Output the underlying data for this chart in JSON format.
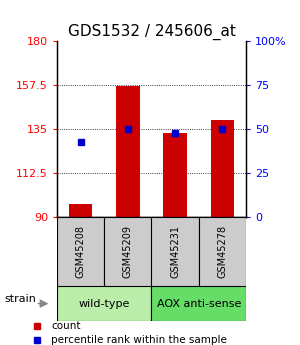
{
  "title": "GDS1532 / 245606_at",
  "samples": [
    "GSM45208",
    "GSM45209",
    "GSM45231",
    "GSM45278"
  ],
  "bar_values": [
    97,
    157,
    133,
    140
  ],
  "percentile_values": [
    43,
    50,
    48,
    50
  ],
  "ymin": 90,
  "ymax": 180,
  "yticks": [
    90,
    112.5,
    135,
    157.5,
    180
  ],
  "ytick_labels": [
    "90",
    "112.5",
    "135",
    "157.5",
    "180"
  ],
  "yright_ticks": [
    0,
    25,
    50,
    75,
    100
  ],
  "yright_labels": [
    "0",
    "25",
    "50",
    "75",
    "100%"
  ],
  "bar_color": "#cc0000",
  "percentile_color": "#0000cc",
  "groups": [
    {
      "label": "wild-type",
      "indices": [
        0,
        1
      ],
      "color": "#bbeeaa"
    },
    {
      "label": "AOX anti-sense",
      "indices": [
        2,
        3
      ],
      "color": "#66dd66"
    }
  ],
  "strain_label": "strain",
  "legend_count_label": "count",
  "legend_percentile_label": "percentile rank within the sample",
  "title_fontsize": 11,
  "tick_fontsize": 8,
  "sample_fontsize": 7,
  "group_fontsize": 8,
  "legend_fontsize": 7.5
}
